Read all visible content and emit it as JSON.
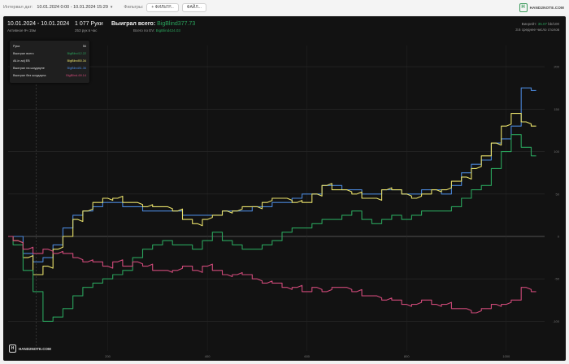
{
  "toolbar": {
    "interval_label": "Интервал дат:",
    "date_range": "10.01.2024 0:00 - 10.01.2024 15:29",
    "filters_label": "Фильтры:",
    "filter_button": "+ ФИЛЬТР...",
    "file_button": "ФАЙЛ...",
    "logo_text": "HAND2NOTE.COM"
  },
  "header": {
    "date": "10.01.2024 - 10.01.2024",
    "active": "Активное 9ч 15м",
    "hands": "1 077 Руки",
    "hands_rate": "253 рук в час",
    "won_label": "Выиграл всего:",
    "won_value": "BigBlind377.73",
    "ev_label": "Всего по EV:",
    "ev_value": "BigBlind424.03",
    "winrate_label": "Винрейт:",
    "winrate_value": "35.07",
    "winrate_unit": "bb/100",
    "avg_tables": "3.6 среднее число столов"
  },
  "legend": {
    "rows": [
      {
        "key": "Рука",
        "value": "56",
        "color": "#dcdcdc"
      },
      {
        "key": "Выиграл всего",
        "value": "BigBlind12.22",
        "color": "#2aa35c"
      },
      {
        "key": "All-in adj EB",
        "value": "BigBlind50.34",
        "color": "#e8e06a"
      },
      {
        "key": "Выиграл на шоудауне",
        "value": "BigBlind81.36",
        "color": "#4a86d8"
      },
      {
        "key": "Выиграл без шоудауна",
        "value": "BigBlind-69.14",
        "color": "#d04a7a"
      }
    ]
  },
  "chart_data": {
    "type": "line",
    "x_ticks": [
      "200",
      "400",
      "600",
      "800",
      "1000"
    ],
    "y_ticks": [
      "200",
      "150",
      "100",
      "50",
      "0",
      "-50",
      "-100"
    ],
    "xlim": [
      0,
      1077
    ],
    "ylim": [
      -135,
      225
    ],
    "grid": true,
    "series": [
      {
        "name": "Выиграл на шоудауне",
        "color": "#4a86d8",
        "x": [
          0,
          20,
          40,
          60,
          80,
          100,
          120,
          140,
          160,
          180,
          200,
          220,
          240,
          260,
          280,
          300,
          320,
          340,
          360,
          380,
          400,
          420,
          440,
          460,
          480,
          500,
          520,
          540,
          560,
          580,
          600,
          620,
          640,
          660,
          680,
          700,
          720,
          740,
          760,
          780,
          800,
          820,
          840,
          860,
          880,
          900,
          920,
          940,
          960,
          980,
          1000,
          1020,
          1040,
          1060
        ],
        "y": [
          0,
          0,
          -20,
          -30,
          -25,
          -10,
          10,
          25,
          30,
          35,
          40,
          40,
          35,
          35,
          30,
          30,
          30,
          30,
          25,
          25,
          25,
          25,
          30,
          30,
          30,
          35,
          35,
          40,
          40,
          45,
          50,
          50,
          60,
          60,
          55,
          55,
          50,
          50,
          55,
          55,
          50,
          50,
          55,
          55,
          50,
          60,
          75,
          85,
          90,
          110,
          115,
          130,
          175,
          172
        ]
      },
      {
        "name": "All-in adj EB",
        "color": "#e8e06a",
        "x": [
          0,
          20,
          40,
          60,
          80,
          100,
          120,
          140,
          160,
          180,
          200,
          220,
          240,
          260,
          280,
          300,
          320,
          340,
          360,
          380,
          400,
          420,
          440,
          460,
          480,
          500,
          520,
          540,
          560,
          580,
          600,
          620,
          640,
          660,
          680,
          700,
          720,
          740,
          760,
          780,
          800,
          820,
          840,
          860,
          880,
          900,
          920,
          940,
          960,
          980,
          1000,
          1020,
          1040,
          1060
        ],
        "y": [
          0,
          -5,
          -25,
          -45,
          -35,
          -15,
          0,
          20,
          30,
          40,
          45,
          45,
          40,
          40,
          35,
          35,
          35,
          30,
          20,
          15,
          20,
          25,
          30,
          30,
          35,
          35,
          40,
          45,
          45,
          40,
          40,
          50,
          60,
          55,
          55,
          50,
          45,
          45,
          55,
          55,
          50,
          45,
          50,
          55,
          55,
          65,
          70,
          80,
          95,
          110,
          130,
          145,
          135,
          130
        ]
      },
      {
        "name": "Выиграл всего",
        "color": "#2aa35c",
        "x": [
          0,
          20,
          40,
          60,
          80,
          100,
          120,
          140,
          160,
          180,
          200,
          220,
          240,
          260,
          280,
          300,
          320,
          340,
          360,
          380,
          400,
          420,
          440,
          460,
          480,
          500,
          520,
          540,
          560,
          580,
          600,
          620,
          640,
          660,
          680,
          700,
          720,
          740,
          760,
          780,
          800,
          820,
          840,
          860,
          880,
          900,
          920,
          940,
          960,
          980,
          1000,
          1020,
          1040,
          1060
        ],
        "y": [
          0,
          -10,
          -40,
          -65,
          -100,
          -95,
          -85,
          -70,
          -60,
          -55,
          -50,
          -45,
          -40,
          -25,
          -15,
          -10,
          -5,
          -10,
          -10,
          -15,
          -5,
          5,
          -5,
          -10,
          -15,
          -15,
          -10,
          -5,
          5,
          10,
          10,
          15,
          20,
          20,
          25,
          30,
          20,
          15,
          20,
          25,
          20,
          25,
          30,
          30,
          30,
          35,
          45,
          55,
          60,
          80,
          100,
          120,
          105,
          95
        ]
      },
      {
        "name": "Выиграл без шоудауна",
        "color": "#d04a7a",
        "x": [
          0,
          20,
          40,
          60,
          80,
          100,
          120,
          140,
          160,
          180,
          200,
          220,
          240,
          260,
          280,
          300,
          320,
          340,
          360,
          380,
          400,
          420,
          440,
          460,
          480,
          500,
          520,
          540,
          560,
          580,
          600,
          620,
          640,
          660,
          680,
          700,
          720,
          740,
          760,
          780,
          800,
          820,
          840,
          860,
          880,
          900,
          920,
          940,
          960,
          980,
          1000,
          1020,
          1040,
          1060
        ],
        "y": [
          0,
          -5,
          -15,
          -20,
          -15,
          -20,
          -20,
          -25,
          -30,
          -30,
          -35,
          -30,
          -35,
          -30,
          -35,
          -40,
          -40,
          -40,
          -35,
          -40,
          -35,
          -40,
          -45,
          -45,
          -45,
          -50,
          -55,
          -55,
          -60,
          -60,
          -65,
          -60,
          -65,
          -60,
          -60,
          -65,
          -70,
          -70,
          -75,
          -75,
          -80,
          -80,
          -75,
          -80,
          -80,
          -85,
          -85,
          -90,
          -85,
          -80,
          -80,
          -75,
          -60,
          -65
        ]
      }
    ]
  },
  "bottom_logo": "HAND2NOTE.COM"
}
